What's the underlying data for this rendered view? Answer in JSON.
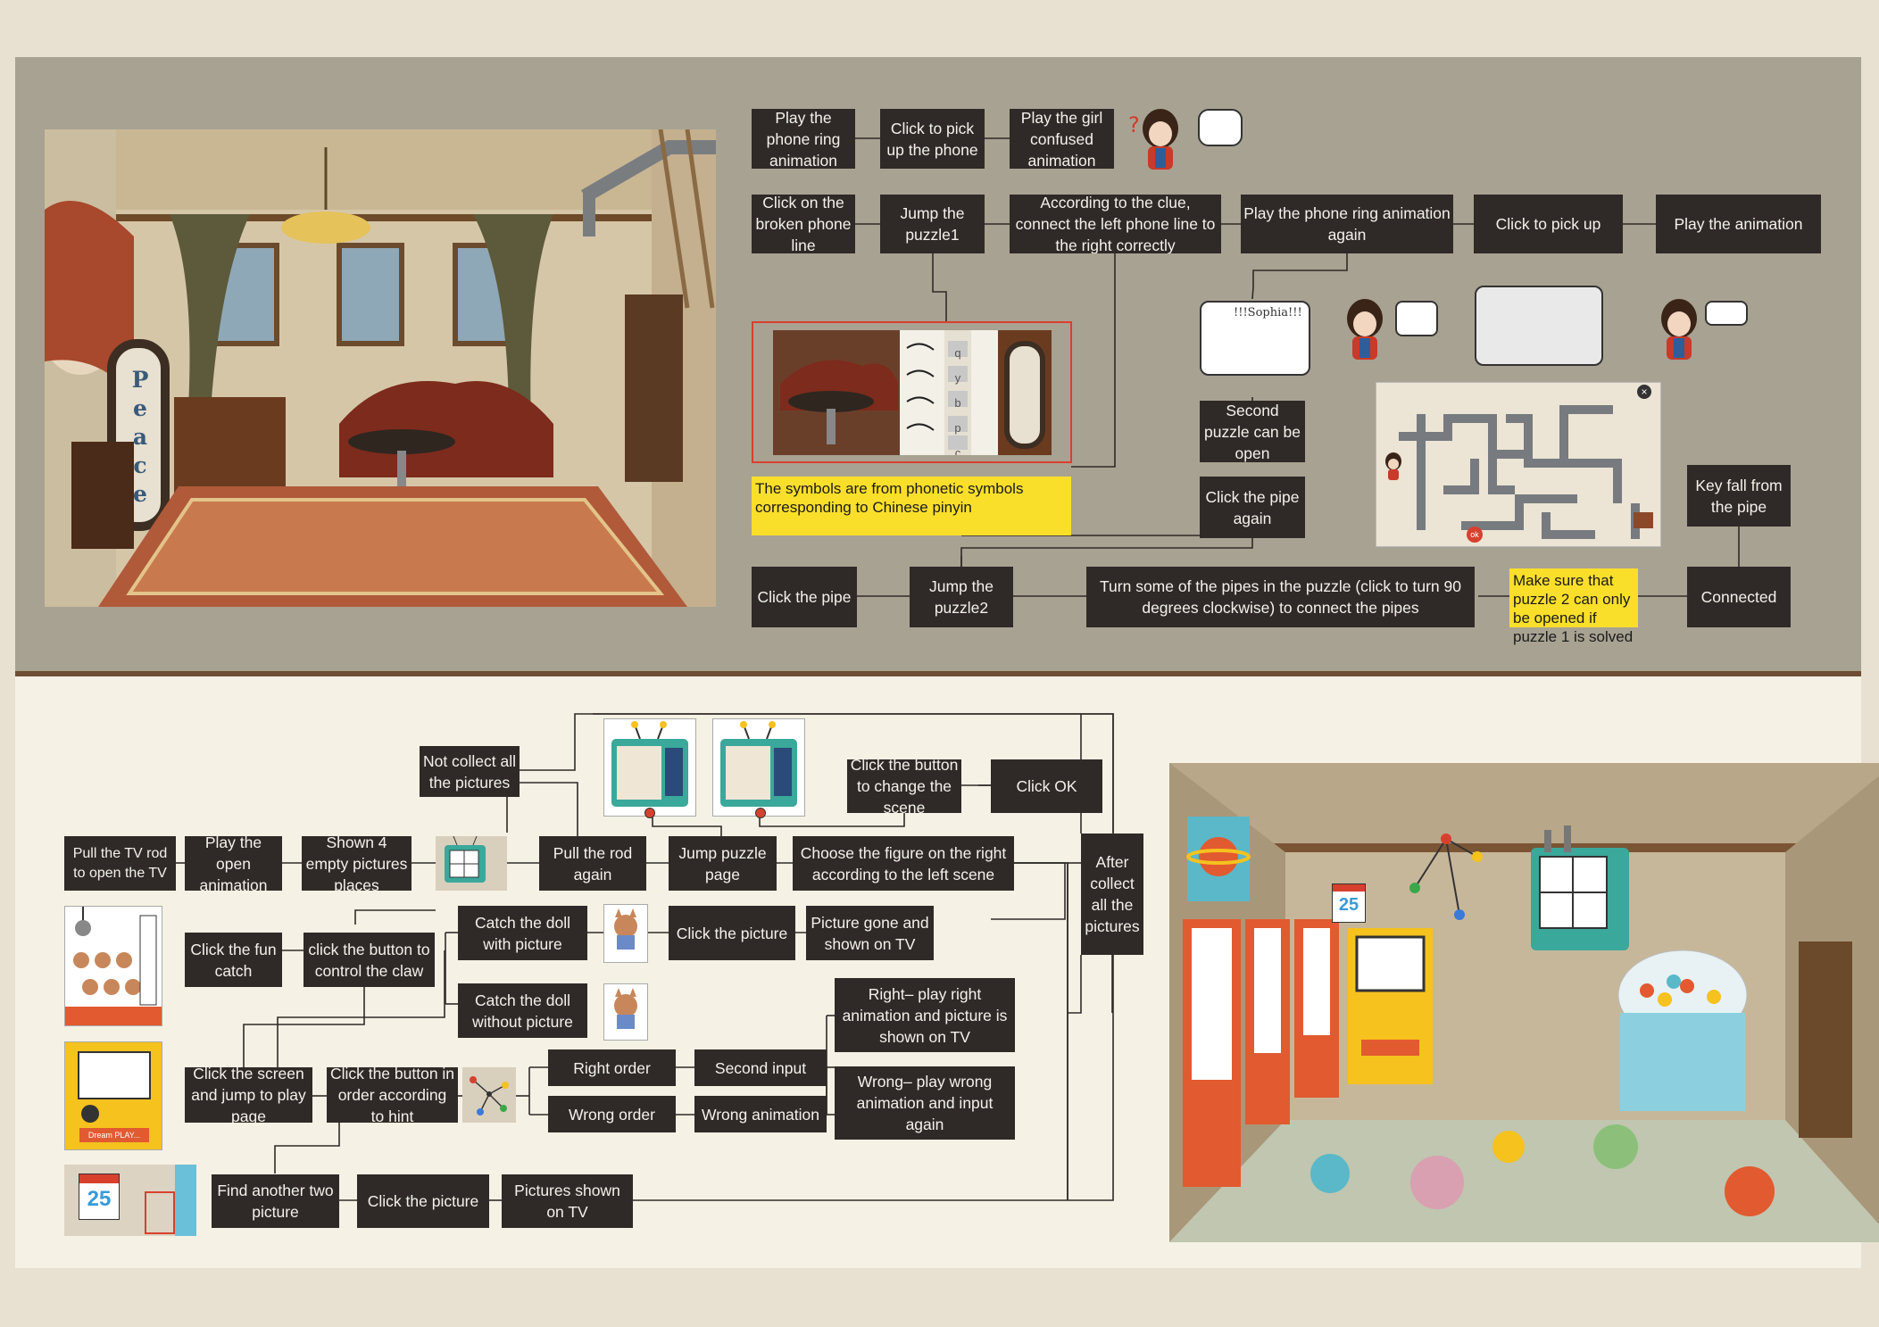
{
  "top": {
    "row1": [
      {
        "id": "play-phone-ring",
        "text": "Play the phone ring animation"
      },
      {
        "id": "click-pick-phone",
        "text": "Click to pick up the phone"
      },
      {
        "id": "play-girl-confused",
        "text": "Play the girl confused animation"
      }
    ],
    "row2": [
      {
        "id": "click-broken-line",
        "text": "Click on the broken phone line"
      },
      {
        "id": "jump-puzzle1",
        "text": "Jump the puzzle1"
      },
      {
        "id": "connect-phone-line",
        "text": "According to the clue, connect the left phone line to the right correctly"
      },
      {
        "id": "play-ring-again",
        "text": "Play the phone ring animation again"
      },
      {
        "id": "click-pick-up",
        "text": "Click to pick up"
      },
      {
        "id": "play-animation",
        "text": "Play the animation"
      }
    ],
    "second_puzzle": "Second puzzle can be open",
    "click_pipe_again": "Click the pipe again",
    "key_fall": "Key fall from the pipe",
    "row3": [
      {
        "id": "click-pipe",
        "text": "Click the pipe"
      },
      {
        "id": "jump-puzzle2",
        "text": "Jump the puzzle2"
      },
      {
        "id": "turn-pipes",
        "text": "Turn some of the pipes in the puzzle (click to turn 90 degrees clockwise) to connect the pipes"
      },
      {
        "id": "connected",
        "text": "Connected"
      }
    ],
    "note_symbols": "The symbols are from phonetic symbols corresponding to Chinese pinyin",
    "note_puzzle2": "Make sure that puzzle 2 can only be opened if puzzle 1 is solved",
    "bubble_sophia": "!!!Sophia!!!",
    "peace_letters": [
      "P",
      "e",
      "a",
      "c",
      "e"
    ],
    "pinyin_symbols": [
      "q",
      "y",
      "b",
      "p",
      "c"
    ],
    "puzzle_close": "×",
    "puzzle_ok": "ok"
  },
  "bottom": {
    "pull_tv": "Pull the TV rod to open the TV",
    "play_open": "Play the open animation",
    "shown_empty": "Shown 4 empty pictures places",
    "not_collect": "Not collect all the pictures",
    "pull_rod_again": "Pull the rod again",
    "jump_puzzle_page": "Jump puzzle page",
    "choose_figure": "Choose the figure on the right according to the left scene",
    "click_change_scene": "Click the button to change the scene",
    "click_ok": "Click OK",
    "after_collect": "After collect all the pictures",
    "click_fun_catch": "Click the fun catch",
    "click_control_claw": "click the button to control the claw",
    "catch_with": "Catch the doll with picture",
    "catch_without": "Catch the doll without picture",
    "click_picture_1": "Click the picture",
    "picture_gone": "Picture gone and shown on TV",
    "right_play": "Right– play right animation and picture is shown on TV",
    "wrong_play": "Wrong– play wrong animation and input again",
    "click_screen": "Click the screen and jump to play page",
    "click_button_order": "Click the button in order according to hint",
    "right_order": "Right order",
    "second_input": "Second input",
    "wrong_order": "Wrong order",
    "wrong_animation": "Wrong animation",
    "find_two": "Find another two picture",
    "click_picture_2": "Click the picture",
    "pictures_shown": "Pictures shown on TV",
    "calendar_day": "25",
    "arcade_label": "PLAY...",
    "arcade_brand": "Dream"
  },
  "colors": {
    "box": "#2f2a28",
    "note": "#fadf2a",
    "top_bg": "#a8a292",
    "bottom_bg": "#f5f1e4",
    "red_outline": "#d8402e"
  }
}
